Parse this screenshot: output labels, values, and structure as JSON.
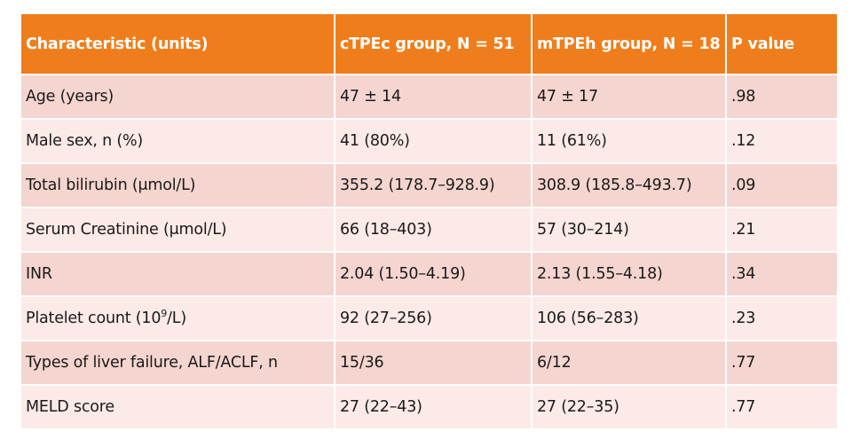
{
  "table": {
    "headers": [
      "Characteristic (units)",
      "cTPEc group, N = 51",
      "mTPEh group, N = 18",
      "P value"
    ],
    "rows": [
      {
        "label": "Age (years)",
        "ctpec": "47 ± 14",
        "mtpeh": "47 ± 17",
        "p": ".98"
      },
      {
        "label": "Male sex, n (%)",
        "ctpec": "41 (80%)",
        "mtpeh": "11 (61%)",
        "p": ".12"
      },
      {
        "label": "Total bilirubin (μmol/L)",
        "ctpec": "355.2 (178.7–928.9)",
        "mtpeh": "308.9 (185.8–493.7)",
        "p": ".09"
      },
      {
        "label": "Serum Creatinine (μmol/L)",
        "ctpec": "66 (18–403)",
        "mtpeh": "57 (30–214)",
        "p": ".21"
      },
      {
        "label": "INR",
        "ctpec": "2.04 (1.50–4.19)",
        "mtpeh": "2.13 (1.55–4.18)",
        "p": ".34"
      },
      {
        "label_pre": "Platelet count (10",
        "label_sup": "9",
        "label_post": "/L)",
        "ctpec": "92 (27–256)",
        "mtpeh": "106 (56–283)",
        "p": ".23"
      },
      {
        "label": "Types of liver failure, ALF/ACLF, n",
        "ctpec": "15/36",
        "mtpeh": "6/12",
        "p": ".77"
      },
      {
        "label": "MELD score",
        "ctpec": "27 (22–43)",
        "mtpeh": "27 (22–35)",
        "p": ".77"
      }
    ]
  },
  "colors": {
    "header_bg": "#f07d1b",
    "header_text": "#ffffff",
    "row_odd_bg": "#f5d5cf",
    "row_even_bg": "#fbeae7"
  }
}
